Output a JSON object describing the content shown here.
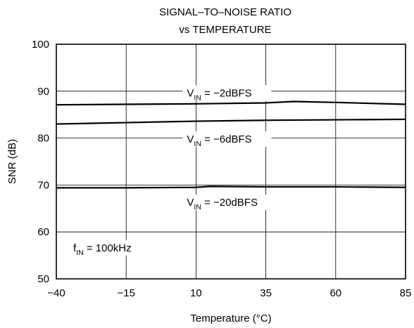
{
  "chart_data": {
    "type": "line",
    "title": [
      "SIGNAL–TO–NOISE RATIO",
      "vs TEMPERATURE"
    ],
    "xlabel": "Temperature (°C)",
    "ylabel": "SNR (dB)",
    "xlim": [
      -40,
      85
    ],
    "ylim": [
      50,
      100
    ],
    "xticks": [
      -40,
      -15,
      10,
      35,
      60,
      85
    ],
    "yticks": [
      50,
      60,
      70,
      80,
      90,
      100
    ],
    "xtick_labels": [
      "−40",
      "−15",
      "10",
      "35",
      "60",
      "85"
    ],
    "ytick_labels": [
      "50",
      "60",
      "70",
      "80",
      "90",
      "100"
    ],
    "grid": true,
    "series": [
      {
        "name": "V_IN = −2dBFS",
        "label_main": "V",
        "label_sub": "IN",
        "label_rest": " = −2dBFS",
        "x": [
          -40,
          -15,
          10,
          35,
          45,
          60,
          85
        ],
        "y": [
          87.1,
          87.2,
          87.3,
          87.5,
          87.8,
          87.6,
          87.2
        ]
      },
      {
        "name": "V_IN = −6dBFS",
        "label_main": "V",
        "label_sub": "IN",
        "label_rest": " = −6dBFS",
        "x": [
          -40,
          -15,
          10,
          35,
          60,
          85
        ],
        "y": [
          83.0,
          83.3,
          83.6,
          83.8,
          83.9,
          84.0
        ]
      },
      {
        "name": "V_IN = −20dBFS",
        "label_main": "V",
        "label_sub": "IN",
        "label_rest": " = −20dBFS",
        "x": [
          -40,
          -15,
          10,
          15,
          35,
          60,
          85
        ],
        "y": [
          69.4,
          69.4,
          69.5,
          69.7,
          69.6,
          69.6,
          69.5
        ]
      }
    ],
    "annotations": [
      {
        "main": "f",
        "sub": "IN",
        "rest": " = 100kHz"
      }
    ]
  }
}
